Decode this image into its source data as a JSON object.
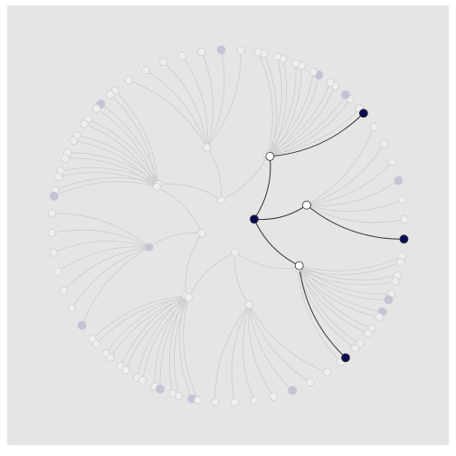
{
  "colors": {
    "background": "#e5e5e5",
    "frame": "#ffffff",
    "link_faded": "#cccccc",
    "link_active": "#333333",
    "node_white": "#ffffff",
    "node_stroke_active": "#333333",
    "node_stroke_faded": "#cfcfcf",
    "node_filled_active": "#0b0b55",
    "node_filled_faded": "#c4c4d6",
    "node_empty_faded": "#eeeeee"
  },
  "tree": {
    "type": "radial-dendrogram",
    "root_count": 4,
    "groups_per_root": 3,
    "leaves_per_group": 7,
    "active_root": 0,
    "active_group_branches": [
      0,
      1,
      2
    ],
    "highlighted_leaf_in_group": 6,
    "filled_leaf_pattern": [
      0,
      0,
      0,
      1,
      0,
      0,
      0,
      0,
      0,
      0,
      1,
      0,
      0,
      0,
      0,
      0,
      0,
      1,
      0,
      0,
      0
    ]
  }
}
